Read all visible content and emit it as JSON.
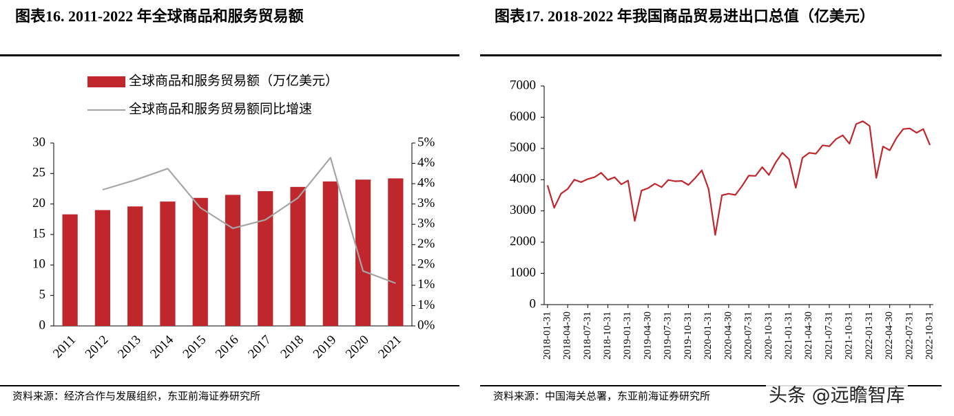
{
  "chart_data": [
    {
      "type": "bar",
      "title": "图表16. 2011-2022 年全球商品和服务贸易额",
      "categories": [
        "2011",
        "2012",
        "2013",
        "2014",
        "2015",
        "2016",
        "2017",
        "2018",
        "2019",
        "2020",
        "2021"
      ],
      "series": [
        {
          "name": "全球商品和服务贸易额（万亿美元）",
          "type": "bar",
          "color": "#c0272d",
          "values": [
            18.3,
            19.0,
            19.6,
            20.4,
            21.0,
            21.5,
            22.1,
            22.8,
            23.7,
            24.0,
            24.2
          ]
        },
        {
          "name": "全球商品和服务贸易额同比增速",
          "type": "line",
          "axis": "y2",
          "color": "#a6a6a6",
          "values": [
            null,
            3.35,
            3.59,
            3.87,
            2.91,
            2.4,
            2.61,
            3.15,
            4.14,
            1.35,
            1.05
          ]
        }
      ],
      "ylim": [
        0,
        30
      ],
      "yticks": [
        0,
        5,
        10,
        15,
        20,
        25,
        30
      ],
      "y2lim": [
        0,
        4.5
      ],
      "y2ticks": [
        {
          "value": 0,
          "label": "0%"
        },
        {
          "value": 0.5,
          "label": "1%"
        },
        {
          "value": 1,
          "label": "1%"
        },
        {
          "value": 1.5,
          "label": "2%"
        },
        {
          "value": 2,
          "label": "2%"
        },
        {
          "value": 2.5,
          "label": "3%"
        },
        {
          "value": 3,
          "label": "3%"
        },
        {
          "value": 3.5,
          "label": "4%"
        },
        {
          "value": 4,
          "label": "4%"
        },
        {
          "value": 4.5,
          "label": "5%"
        }
      ],
      "source": "资料来源：经济合作与发展组织，东亚前海证券研究所"
    },
    {
      "type": "line",
      "title": "图表17. 2018-2022 年我国商品贸易进出口总值（亿美元）",
      "categories": [
        "2018-01-31",
        null,
        null,
        "2018-04-30",
        null,
        null,
        "2018-07-31",
        null,
        null,
        "2018-10-31",
        null,
        null,
        "2019-01-31",
        null,
        null,
        "2019-04-30",
        null,
        null,
        "2019-07-31",
        null,
        null,
        "2019-10-31",
        null,
        null,
        "2020-01-31",
        null,
        null,
        "2020-04-30",
        null,
        null,
        "2020-07-31",
        null,
        null,
        "2020-10-31",
        null,
        null,
        "2021-01-31",
        null,
        null,
        "2021-04-30",
        null,
        null,
        "2021-07-31",
        null,
        null,
        "2021-10-31",
        null,
        null,
        "2022-01-31",
        null,
        null,
        "2022-04-30",
        null,
        null,
        "2022-07-31",
        null,
        null,
        "2022-10-31"
      ],
      "values": [
        3820,
        3100,
        3550,
        3700,
        4000,
        3920,
        4020,
        4080,
        4220,
        3990,
        4080,
        3850,
        3970,
        2680,
        3650,
        3730,
        3870,
        3760,
        3990,
        3950,
        3960,
        3830,
        4050,
        4300,
        3700,
        2230,
        3500,
        3550,
        3510,
        3800,
        4130,
        4120,
        4400,
        4150,
        4550,
        4860,
        4650,
        3740,
        4700,
        4860,
        4830,
        5100,
        5070,
        5300,
        5420,
        5150,
        5780,
        5870,
        5720,
        4060,
        5060,
        4940,
        5330,
        5620,
        5640,
        5500,
        5620,
        5110
      ],
      "color": "#c0272d",
      "ylim": [
        0,
        7000
      ],
      "yticks": [
        0,
        1000,
        2000,
        3000,
        4000,
        5000,
        6000,
        7000
      ],
      "source": "资料来源：中国海关总署，东亚前海证券研究所"
    }
  ],
  "watermark": "头条 @远瞻智库"
}
